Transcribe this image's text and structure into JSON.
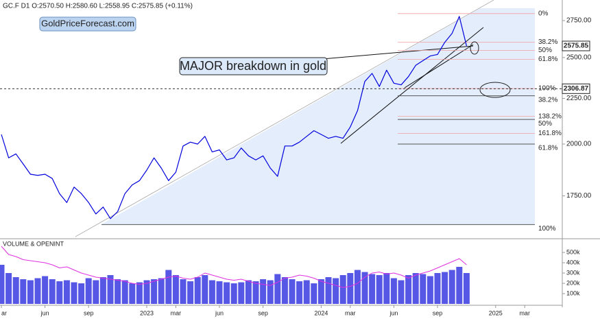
{
  "chart_data": [
    {
      "type": "line",
      "title": "GC.F  D1  O:2570.50  H:2580.60  L:2558.95  C:2575.85  (+0.11%)",
      "annotations": [
        "GoldPriceForecast.com",
        "MAJOR breakdown in gold"
      ],
      "log_scale": true,
      "color": "#0000dd",
      "categories": [
        "ar",
        null,
        null,
        null,
        null,
        null,
        "jun",
        null,
        null,
        null,
        null,
        null,
        "sep",
        null,
        null,
        null,
        null,
        null,
        null,
        null,
        "2023",
        null,
        null,
        null,
        "mar",
        null,
        null,
        null,
        null,
        null,
        "jun",
        null,
        null,
        null,
        null,
        null,
        "sep",
        null,
        null,
        null,
        null,
        null,
        null,
        null,
        "2024",
        null,
        null,
        null,
        "mar",
        null,
        null,
        null,
        null,
        null,
        "jun",
        null,
        null,
        null,
        null,
        null,
        "sep",
        null,
        null,
        null,
        null,
        null,
        null,
        null,
        "2025",
        null,
        null,
        null,
        "mar",
        null,
        null,
        null
      ],
      "values": [
        2050,
        1930,
        1950,
        1900,
        1850,
        1845,
        1850,
        1830,
        1760,
        1720,
        1790,
        1760,
        1720,
        1670,
        1700,
        1650,
        1680,
        1760,
        1800,
        1820,
        1870,
        1930,
        1880,
        1820,
        1860,
        1990,
        2010,
        2000,
        2040,
        1960,
        1970,
        1920,
        1930,
        1980,
        1940,
        1920,
        1940,
        1880,
        1840,
        1990,
        1990,
        2010,
        2040,
        2070,
        2050,
        2030,
        2040,
        2030,
        2090,
        2180,
        2350,
        2400,
        2320,
        2420,
        2340,
        2330,
        2380,
        2450,
        2480,
        2510,
        2520,
        2600,
        2660,
        2780,
        2575.85,
        null,
        null,
        null,
        null,
        null,
        null,
        null,
        null,
        null,
        null,
        null
      ],
      "ylim": [
        1575,
        2900
      ],
      "yticks": [
        {
          "value": 1750,
          "label": "1750.00"
        },
        {
          "value": 2000,
          "label": "2000.00"
        },
        {
          "value": 2250,
          "label": "2250.00"
        },
        {
          "value": 2500,
          "label": "2500.00"
        },
        {
          "value": 2750,
          "label": "2750.00"
        }
      ],
      "price_tags": [
        2575.85,
        2306.87
      ],
      "fib_sets": [
        {
          "color": "#e00000",
          "levels": [
            {
              "value": 2800,
              "label": "0%"
            },
            {
              "value": 2601,
              "label": "38.2%"
            },
            {
              "value": 2547,
              "label": "50%"
            },
            {
              "value": 2489,
              "label": "61.8%"
            },
            {
              "value": 2308,
              "label": "100%"
            },
            {
              "value": 2148,
              "label": "138.2%"
            },
            {
              "value": 2056,
              "label": "161.8%"
            }
          ]
        },
        {
          "color": "#000000",
          "levels": [
            {
              "value": 2265,
              "label": "38.2%"
            },
            {
              "value": 2131,
              "label": "50%"
            },
            {
              "value": 2000,
              "label": "61.8%"
            },
            {
              "value": 1625,
              "label": "100%"
            }
          ]
        }
      ]
    },
    {
      "type": "bar",
      "title": "VOLUME & OPENINT",
      "ylim": [
        0,
        620000
      ],
      "yticks": [
        {
          "value": 100000,
          "label": "100k"
        },
        {
          "value": 200000,
          "label": "200k"
        },
        {
          "value": 300000,
          "label": "300k"
        },
        {
          "value": 400000,
          "label": "400k"
        },
        {
          "value": 500000,
          "label": "500k"
        }
      ],
      "series": [
        {
          "color": "#3a3ae0",
          "values": [
            380000,
            300000,
            260000,
            240000,
            230000,
            250000,
            270000,
            240000,
            220000,
            230000,
            210000,
            200000,
            250000,
            230000,
            260000,
            280000,
            240000,
            230000,
            200000,
            210000,
            230000,
            240000,
            250000,
            330000,
            280000,
            240000,
            220000,
            260000,
            280000,
            230000,
            220000,
            210000,
            200000,
            210000,
            230000,
            220000,
            240000,
            230000,
            290000,
            260000,
            240000,
            220000,
            230000,
            200000,
            240000,
            260000,
            250000,
            280000,
            300000,
            330000,
            310000,
            290000,
            280000,
            300000,
            250000,
            230000,
            280000,
            300000,
            290000,
            270000,
            300000,
            310000,
            330000,
            360000,
            300000,
            null,
            null,
            null,
            null,
            null,
            null,
            null,
            null,
            null,
            null,
            null
          ]
        },
        {
          "type": "line",
          "color": "#e030e0",
          "values": [
            560000,
            480000,
            460000,
            430000,
            420000,
            410000,
            400000,
            380000,
            350000,
            360000,
            330000,
            300000,
            280000,
            260000,
            250000,
            240000,
            230000,
            220000,
            200000,
            190000,
            200000,
            220000,
            240000,
            260000,
            270000,
            250000,
            240000,
            260000,
            300000,
            280000,
            260000,
            240000,
            230000,
            240000,
            220000,
            200000,
            190000,
            180000,
            210000,
            250000,
            260000,
            280000,
            270000,
            250000,
            220000,
            200000,
            180000,
            160000,
            170000,
            200000,
            260000,
            300000,
            310000,
            290000,
            300000,
            280000,
            250000,
            280000,
            300000,
            320000,
            350000,
            380000,
            410000,
            440000,
            380000,
            null,
            null,
            null,
            null,
            null,
            null,
            null,
            null,
            null,
            null,
            null
          ]
        }
      ]
    }
  ]
}
